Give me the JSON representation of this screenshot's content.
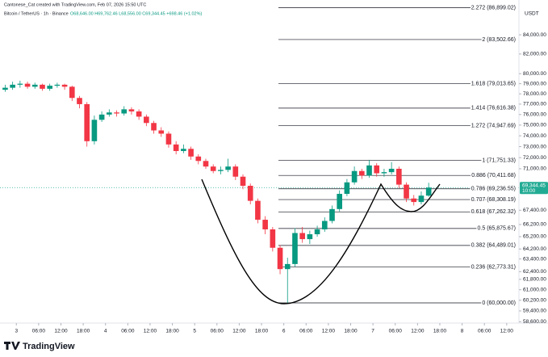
{
  "chart_data": {
    "type": "candlestick",
    "title": "Cantonese_Cat created with TradingView.com, Feb 07, 2026 15:50 UTC",
    "subtitle": "Bitcoin / TetherUS · 1h · Binance",
    "ohlc_text": "O68,646.00 H69,762.46 L68,556.00 C69,344.45 +698.46 (+1.02%)",
    "y_axis_label": "USDT",
    "footer": "TradingView",
    "log_scale": true,
    "grid": false,
    "up_color": "#089981",
    "down_color": "#f23645",
    "x": [
      -4,
      -2,
      0,
      2,
      4,
      6,
      8,
      10,
      12,
      14,
      16,
      18,
      20,
      22,
      24,
      26,
      28,
      30,
      32,
      34,
      36,
      38,
      40,
      42,
      44,
      46,
      48,
      50,
      52,
      54,
      56,
      58,
      60,
      62,
      64,
      66,
      68,
      70,
      72,
      74,
      76,
      78,
      80,
      82,
      84,
      86,
      88,
      90,
      92,
      94,
      96,
      98,
      100,
      102,
      104,
      106,
      108,
      110
    ],
    "open": [
      78400,
      78600,
      78900,
      79000,
      78700,
      78900,
      78500,
      78800,
      78900,
      78700,
      77600,
      77000,
      73500,
      75500,
      76000,
      76200,
      76100,
      76500,
      76300,
      75800,
      75200,
      74500,
      74200,
      73200,
      72600,
      72800,
      72100,
      71700,
      71200,
      70800,
      70900,
      71200,
      70300,
      69500,
      68200,
      66600,
      65800,
      64300,
      62600,
      63000,
      65500,
      65000,
      65400,
      65800,
      66500,
      67500,
      68800,
      69800,
      70800,
      70400,
      71300,
      70600,
      70700,
      71000,
      69600,
      68400,
      68100,
      68646
    ],
    "high": [
      78900,
      79200,
      79300,
      79200,
      79100,
      79000,
      79000,
      79100,
      79000,
      78800,
      77800,
      77200,
      75900,
      76300,
      76500,
      76400,
      76800,
      76700,
      76500,
      76000,
      75400,
      74800,
      74400,
      73500,
      73200,
      73000,
      72300,
      71900,
      71400,
      71200,
      71900,
      71400,
      70500,
      69700,
      68400,
      66900,
      66000,
      64500,
      63500,
      65900,
      66000,
      65700,
      66100,
      66800,
      67800,
      69100,
      70100,
      71200,
      71000,
      71800,
      71500,
      71000,
      71600,
      71200,
      69800,
      68700,
      69000,
      69762.46
    ],
    "low": [
      78200,
      78400,
      78600,
      78500,
      78500,
      78300,
      78300,
      78600,
      78400,
      77300,
      76600,
      73000,
      73200,
      75300,
      75800,
      75800,
      75900,
      76000,
      75500,
      74900,
      74200,
      73900,
      72900,
      72300,
      72400,
      71800,
      71400,
      71000,
      70600,
      70500,
      70700,
      70000,
      69200,
      67900,
      66300,
      65400,
      64000,
      62200,
      60000,
      62800,
      64700,
      64600,
      65200,
      65600,
      66300,
      67300,
      68600,
      69600,
      70100,
      70200,
      70300,
      70300,
      70500,
      69300,
      68100,
      67800,
      67900,
      68556
    ],
    "close": [
      78600,
      78900,
      79000,
      78700,
      78900,
      78500,
      78800,
      78900,
      78700,
      77600,
      77000,
      73500,
      75500,
      76000,
      76200,
      76100,
      76500,
      76300,
      75800,
      75200,
      74500,
      74200,
      73200,
      72600,
      72800,
      72100,
      71700,
      71200,
      70800,
      70900,
      71200,
      70300,
      69500,
      68200,
      66600,
      65800,
      64300,
      62600,
      63000,
      65500,
      65000,
      65400,
      65800,
      66500,
      67500,
      68800,
      69800,
      70800,
      70400,
      71300,
      70600,
      70700,
      71000,
      69600,
      68400,
      68100,
      68646,
      69344.45
    ],
    "xlim": [
      -4.4,
      135.3
    ],
    "ylim": [
      58500,
      87750
    ],
    "xticks": [
      {
        "value": 0,
        "label": "3"
      },
      {
        "value": 6,
        "label": "06:00"
      },
      {
        "value": 12,
        "label": "12:00"
      },
      {
        "value": 18,
        "label": "18:00"
      },
      {
        "value": 24,
        "label": "4"
      },
      {
        "value": 30,
        "label": "06:00"
      },
      {
        "value": 36,
        "label": "12:00"
      },
      {
        "value": 42,
        "label": "18:00"
      },
      {
        "value": 48,
        "label": "5"
      },
      {
        "value": 54,
        "label": "06:00"
      },
      {
        "value": 60,
        "label": "12:00"
      },
      {
        "value": 66,
        "label": "18:00"
      },
      {
        "value": 72,
        "label": "6"
      },
      {
        "value": 78,
        "label": "06:00"
      },
      {
        "value": 84,
        "label": "12:00"
      },
      {
        "value": 90,
        "label": "18:00"
      },
      {
        "value": 96,
        "label": "7"
      },
      {
        "value": 102,
        "label": "06:00"
      },
      {
        "value": 108,
        "label": "12:00"
      },
      {
        "value": 114,
        "label": "18:00"
      },
      {
        "value": 120,
        "label": "8"
      },
      {
        "value": 126,
        "label": "06:00"
      },
      {
        "value": 132,
        "label": "12:00"
      }
    ],
    "yticks": [
      {
        "value": 84000,
        "label": "84,000.00"
      },
      {
        "value": 82000,
        "label": "82,000.00"
      },
      {
        "value": 80000,
        "label": "80,000.00"
      },
      {
        "value": 79000,
        "label": "79,000.00"
      },
      {
        "value": 78000,
        "label": "78,000.00"
      },
      {
        "value": 77000,
        "label": "77,000.00"
      },
      {
        "value": 76000,
        "label": "76,000.00"
      },
      {
        "value": 75000,
        "label": "75,000.00"
      },
      {
        "value": 74000,
        "label": "74,000.00"
      },
      {
        "value": 73000,
        "label": "73,000.00"
      },
      {
        "value": 72000,
        "label": "72,000.00"
      },
      {
        "value": 71000,
        "label": "71,000.00"
      },
      {
        "value": 67400,
        "label": "67,400.00"
      },
      {
        "value": 66200,
        "label": "66,200.00"
      },
      {
        "value": 65200,
        "label": "65,200.00"
      },
      {
        "value": 64200,
        "label": "64,200.00"
      },
      {
        "value": 63400,
        "label": "63,400.00"
      },
      {
        "value": 62400,
        "label": "62,400.00"
      },
      {
        "value": 61800,
        "label": "61,800.00"
      },
      {
        "value": 61000,
        "label": "61,000.00"
      },
      {
        "value": 60200,
        "label": "60,200.00"
      },
      {
        "value": 59400,
        "label": "59,400.00"
      },
      {
        "value": 58600,
        "label": "58,600.00"
      }
    ],
    "last_price": {
      "value": 69344.45,
      "label": "69,344.45"
    },
    "countdown": "10:00",
    "last_price_color": "#22ab94",
    "fib_color": "#131722",
    "fib_levels": [
      {
        "value": 86899.02,
        "label": "2.272 (86,899.02)"
      },
      {
        "value": 83502.66,
        "label": "2 (83,502.66)"
      },
      {
        "value": 79013.65,
        "label": "1.618 (79,013.65)"
      },
      {
        "value": 76616.38,
        "label": "1.414 (76,616.38)"
      },
      {
        "value": 74947.69,
        "label": "1.272 (74,947.69)"
      },
      {
        "value": 71751.33,
        "label": "1 (71,751.33)"
      },
      {
        "value": 70411.68,
        "label": "0.886 (70,411.68)"
      },
      {
        "value": 69236.55,
        "label": "0.786 (69,236.55)"
      },
      {
        "value": 68308.19,
        "label": "0.707 (68,308.19)"
      },
      {
        "value": 67262.32,
        "label": "0.618 (67,262.32)"
      },
      {
        "value": 65875.67,
        "label": "0.5 (65,875.67)"
      },
      {
        "value": 64489.01,
        "label": "0.382 (64,489.01)"
      },
      {
        "value": 62773.31,
        "label": "0.236 (62,773.31)"
      },
      {
        "value": 60000.0,
        "label": "0 (60,000.00)"
      }
    ]
  }
}
